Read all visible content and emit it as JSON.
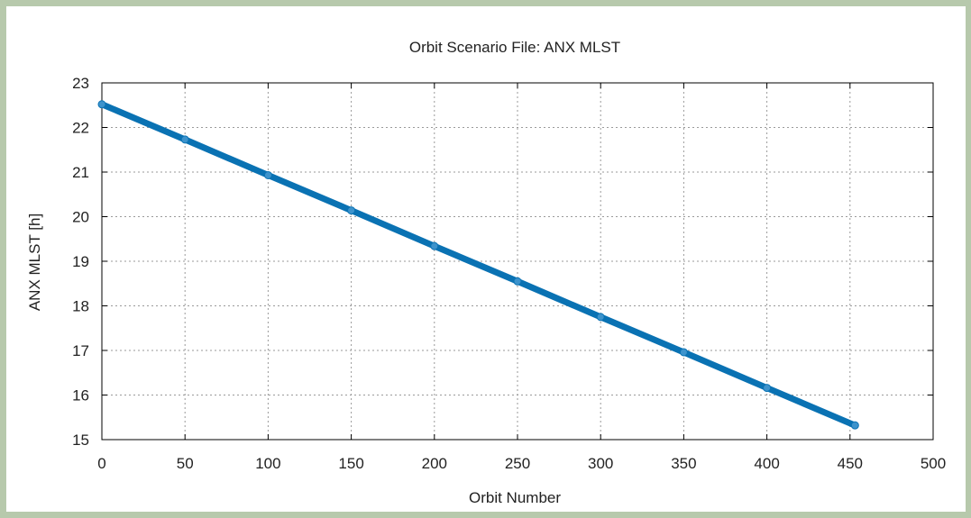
{
  "chart_data": {
    "type": "scatter",
    "title": "Orbit Scenario File: ANX MLST",
    "xlabel": "Orbit Number",
    "ylabel": "ANX MLST [h]",
    "xlim": [
      0,
      500
    ],
    "ylim": [
      15,
      23
    ],
    "xticks": [
      0,
      50,
      100,
      150,
      200,
      250,
      300,
      350,
      400,
      450,
      500
    ],
    "yticks": [
      15,
      16,
      17,
      18,
      19,
      20,
      21,
      22,
      23
    ],
    "grid": true,
    "series": [
      {
        "color": "#0a72b3",
        "x": [
          0,
          50,
          100,
          150,
          200,
          250,
          300,
          350,
          400,
          453
        ],
        "y": [
          22.52,
          21.73,
          20.93,
          20.14,
          19.34,
          18.55,
          17.75,
          16.96,
          16.16,
          15.32
        ]
      }
    ]
  }
}
